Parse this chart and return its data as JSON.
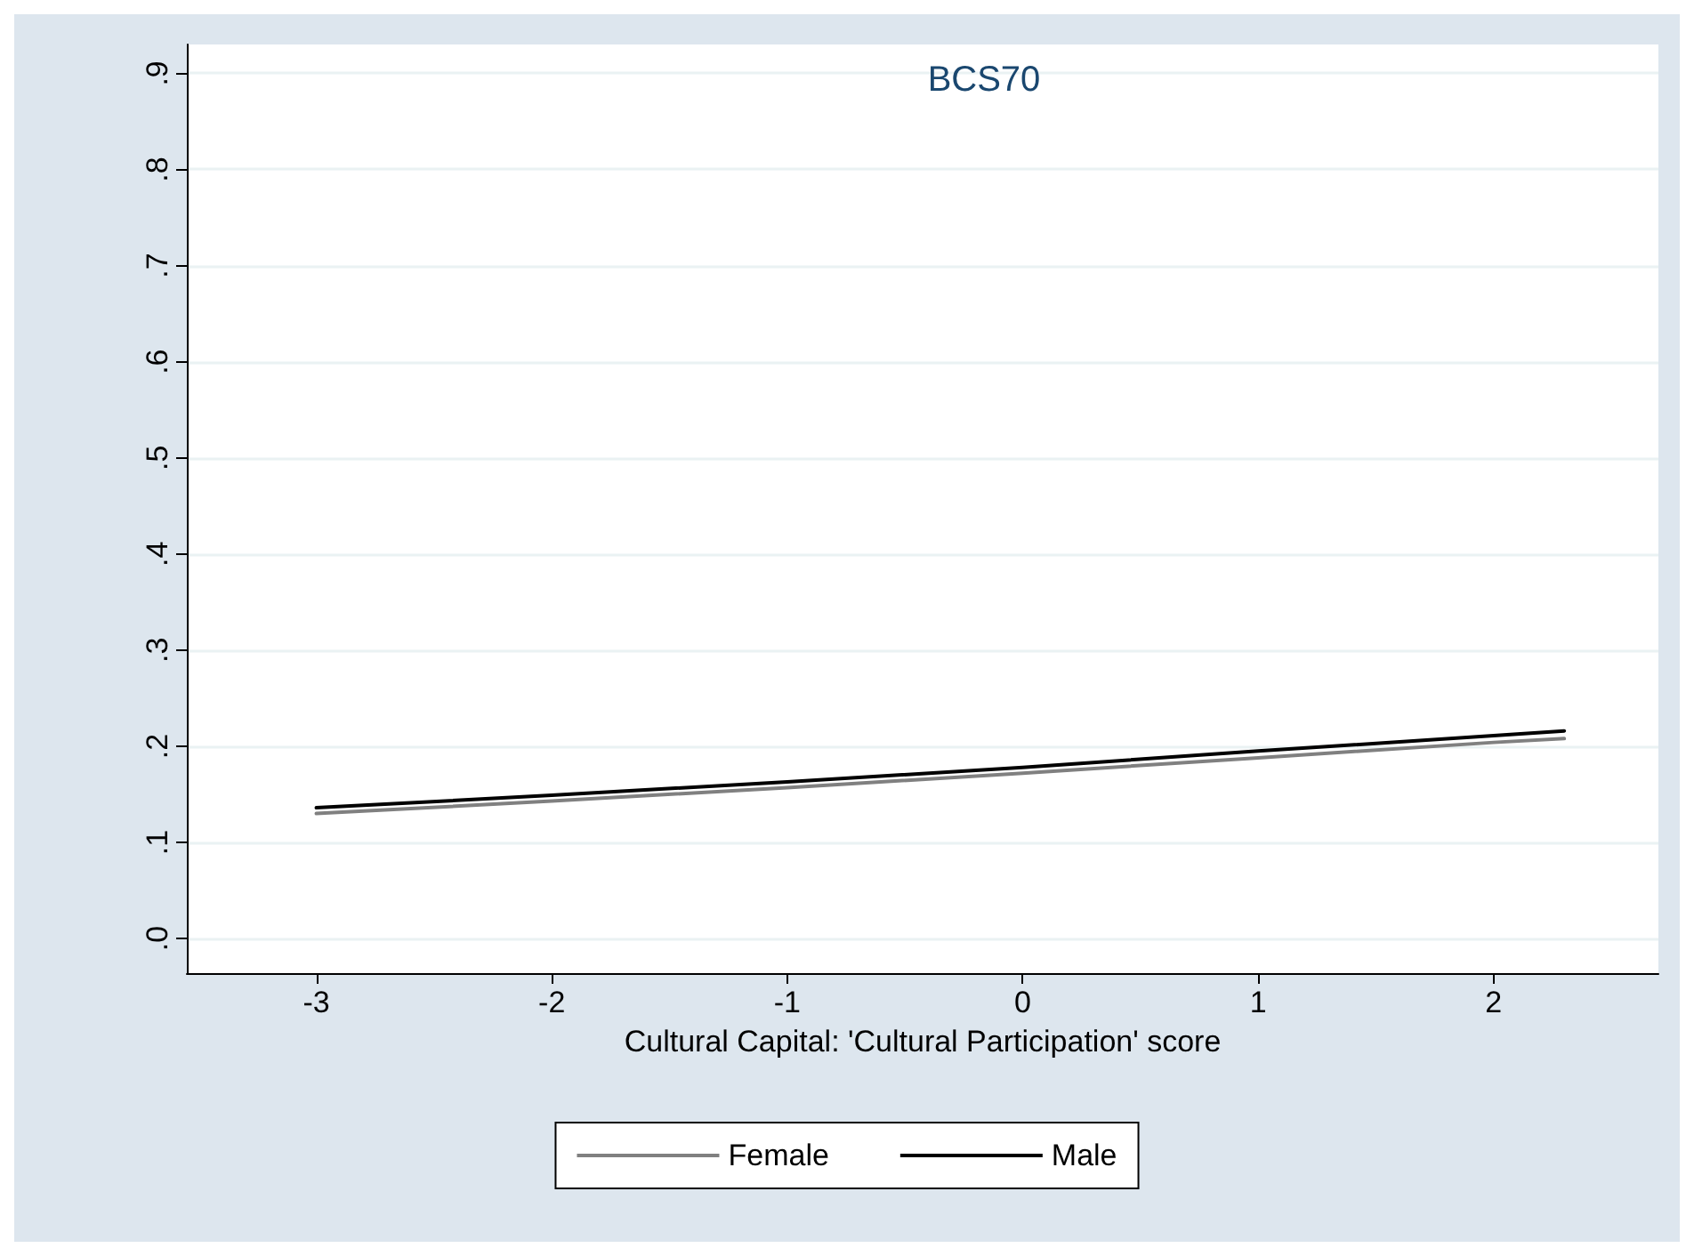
{
  "chart_data": {
    "type": "line",
    "title": "BCS70",
    "xlabel": "Cultural Capital: 'Cultural Participation' score",
    "x": [
      -3,
      -2,
      -1,
      0,
      1,
      2,
      2.3
    ],
    "series": [
      {
        "name": "Female",
        "color": "#808080",
        "values": [
          0.13,
          0.143,
          0.157,
          0.172,
          0.188,
          0.204,
          0.208
        ]
      },
      {
        "name": "Male",
        "color": "#000000",
        "values": [
          0.136,
          0.149,
          0.163,
          0.178,
          0.195,
          0.211,
          0.216
        ]
      }
    ],
    "xlim": [
      -3.55,
      2.7
    ],
    "xticks": [
      -3,
      -2,
      -1,
      0,
      1,
      2
    ],
    "ylim": [
      -0.036,
      0.93
    ],
    "yticks": [
      {
        "value": 0,
        "label": ".0"
      },
      {
        "value": 0.1,
        "label": ".1"
      },
      {
        "value": 0.2,
        "label": ".2"
      },
      {
        "value": 0.3,
        "label": ".3"
      },
      {
        "value": 0.4,
        "label": ".4"
      },
      {
        "value": 0.5,
        "label": ".5"
      },
      {
        "value": 0.6,
        "label": ".6"
      },
      {
        "value": 0.7,
        "label": ".7"
      },
      {
        "value": 0.8,
        "label": ".8"
      },
      {
        "value": 0.9,
        "label": ".9"
      }
    ],
    "grid": "y",
    "legend": "bottom",
    "marker": "none",
    "line_style": "solid"
  }
}
